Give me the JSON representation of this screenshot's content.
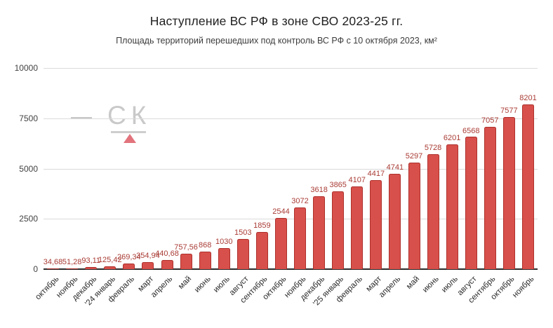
{
  "header": {
    "title": "Наступление ВС РФ в зоне СВО 2023-25 гг.",
    "subtitle": "Площадь территорий перешедших под контроль ВС РФ с 10 октября 2023, км²"
  },
  "watermark": {
    "dash": "—",
    "text": "СК",
    "triangle_color": "#e2737c"
  },
  "colors": {
    "bar_fill": "#d8504b",
    "bar_border": "#ad302c",
    "value_label": "#a93c35",
    "grid": "#dadada",
    "axis": "#2a2a2a"
  },
  "chart_data": {
    "type": "bar",
    "title": "Наступление ВС РФ в зоне СВО 2023-25 гг.",
    "subtitle": "Площадь территорий перешедших под контроль ВС РФ с 10 октября 2023, км²",
    "xlabel": "",
    "ylabel": "",
    "ylim": [
      0,
      10000
    ],
    "yticks": [
      0,
      2500,
      5000,
      7500,
      10000
    ],
    "grid": "horizontal",
    "legend": "none",
    "categories": [
      "октябрь",
      "ноябрь",
      "декабрь",
      "'24 январь",
      "февраль",
      "март",
      "апрель",
      "май",
      "июнь",
      "июль",
      "август",
      "сентябрь",
      "октябрь",
      "ноябрь",
      "декабрь",
      "'25 январь",
      "февраль",
      "март",
      "апрель",
      "май",
      "июнь",
      "июль",
      "август",
      "сентябрь",
      "октябрь",
      "ноябрь"
    ],
    "values": [
      34.68,
      51.28,
      93.11,
      125.42,
      269.34,
      354.94,
      440.68,
      757.56,
      868,
      1030,
      1503,
      1859,
      2544,
      3072,
      3618,
      3865,
      4107,
      4417,
      4741,
      5297,
      5728,
      6201,
      6568,
      7057,
      7577,
      8201
    ],
    "value_labels": [
      "34,68",
      "51,28",
      "93,11",
      "125,42",
      "269,34",
      "354,94",
      "440,68",
      "757,56",
      "868",
      "1030",
      "1503",
      "1859",
      "2544",
      "3072",
      "3618",
      "3865",
      "4107",
      "4417",
      "4741",
      "5297",
      "5728",
      "6201",
      "6568",
      "7057",
      "7577",
      "8201"
    ]
  }
}
